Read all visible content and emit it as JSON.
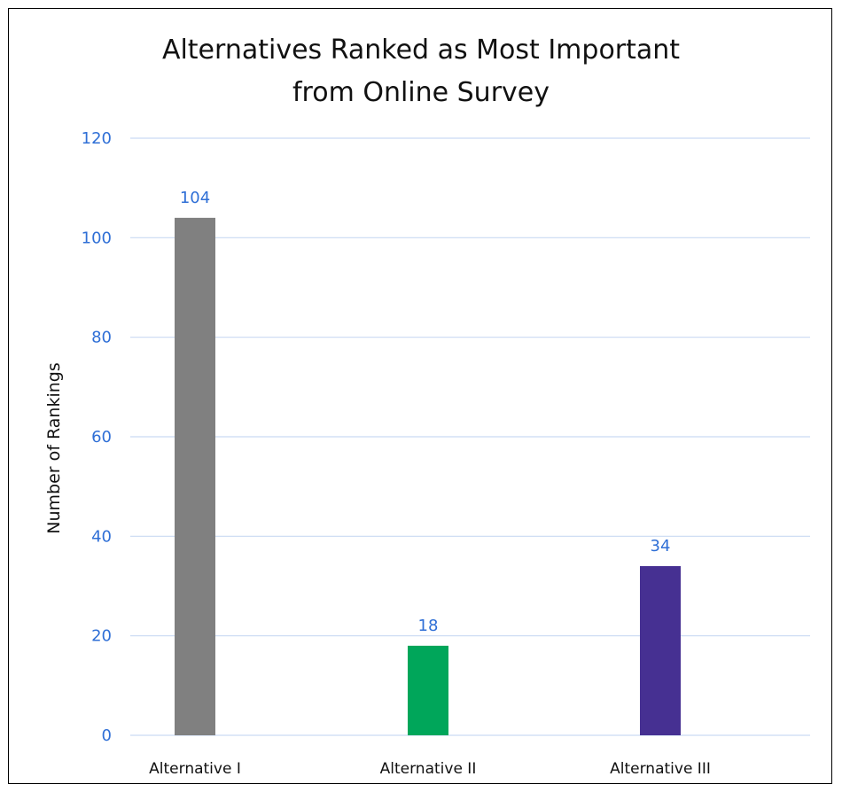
{
  "chart_data": {
    "type": "bar",
    "title_lines": [
      "Alternatives Ranked as Most Important",
      "from Online Survey"
    ],
    "xlabel": "",
    "ylabel": "Number of Rankings",
    "categories": [
      "Alternative I",
      "Alternative II",
      "Alternative III"
    ],
    "values": [
      104,
      18,
      34
    ],
    "data_labels": [
      "104",
      "18",
      "34"
    ],
    "colors": [
      "#808080",
      "#00a65a",
      "#463092"
    ],
    "ylim": [
      0,
      120
    ],
    "yticks": [
      0,
      20,
      40,
      60,
      80,
      100,
      120
    ],
    "ytick_labels": [
      "0",
      "20",
      "40",
      "60",
      "80",
      "100",
      "120"
    ],
    "grid": true,
    "legend": "none",
    "tick_color": "#2f6fd6",
    "grid_color": "#c9daf3"
  }
}
